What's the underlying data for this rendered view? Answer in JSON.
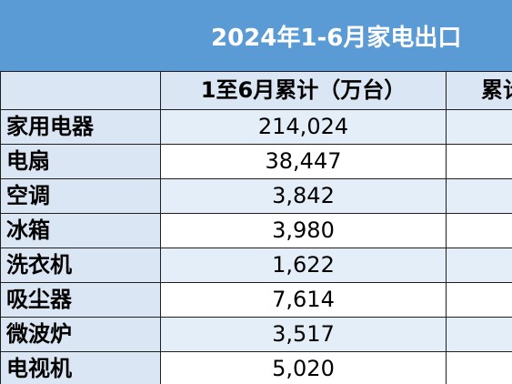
{
  "title": "2024年1-6月家电出口",
  "header": {
    "col_name": "",
    "col_cumulative": "1至6月累计（万台）",
    "col_next_partial": "累计"
  },
  "rows": [
    {
      "name": "家用电器",
      "value": "214,024"
    },
    {
      "name": "电扇",
      "value": "38,447"
    },
    {
      "name": "空调",
      "value": "3,842"
    },
    {
      "name": "冰箱",
      "value": "3,980"
    },
    {
      "name": "洗衣机",
      "value": "1,622"
    },
    {
      "name": "吸尘器",
      "value": "7,614"
    },
    {
      "name": "微波炉",
      "value": "3,517"
    },
    {
      "name": "电视机",
      "value": "5,020"
    }
  ],
  "colors": {
    "title_band": "#5b9bd5",
    "header_fill": "#dbe6f4",
    "row_band": "#e4eef9",
    "border": "#1f1f1f"
  }
}
